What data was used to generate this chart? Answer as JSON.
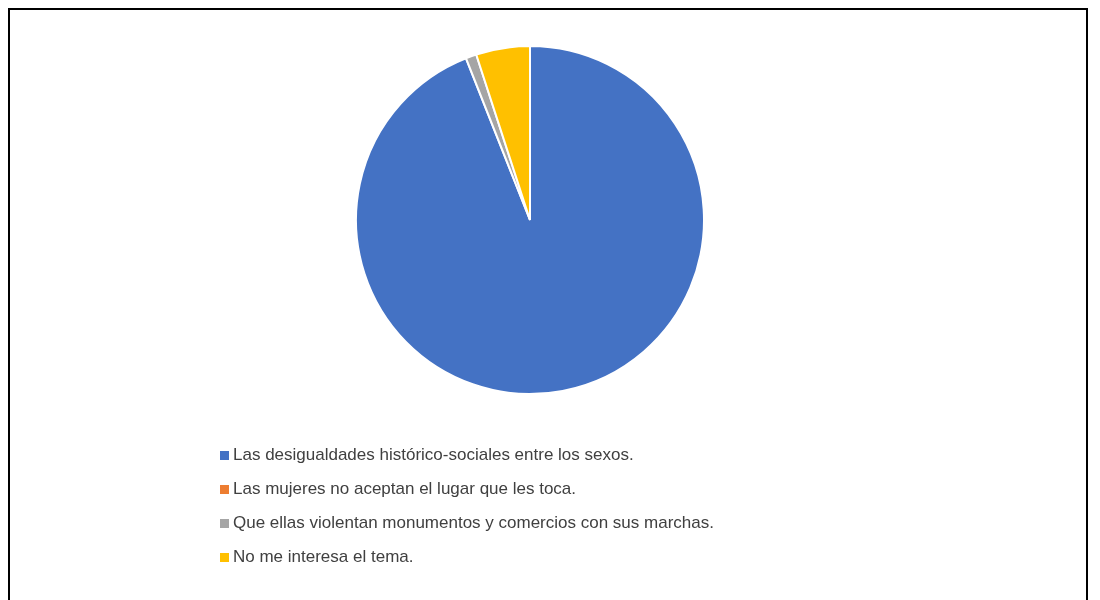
{
  "chart_data": {
    "type": "pie",
    "categories": [
      "Las desigualdades histórico-sociales entre los sexos.",
      "Las mujeres no aceptan el lugar que les toca.",
      "Que ellas violentan monumentos y comercios con sus marchas.",
      "No me interesa el tema."
    ],
    "values": [
      94,
      0,
      1,
      5
    ],
    "colors": [
      "#4472c4",
      "#ed7d31",
      "#a5a5a5",
      "#ffc000"
    ],
    "legend": "bottom"
  }
}
